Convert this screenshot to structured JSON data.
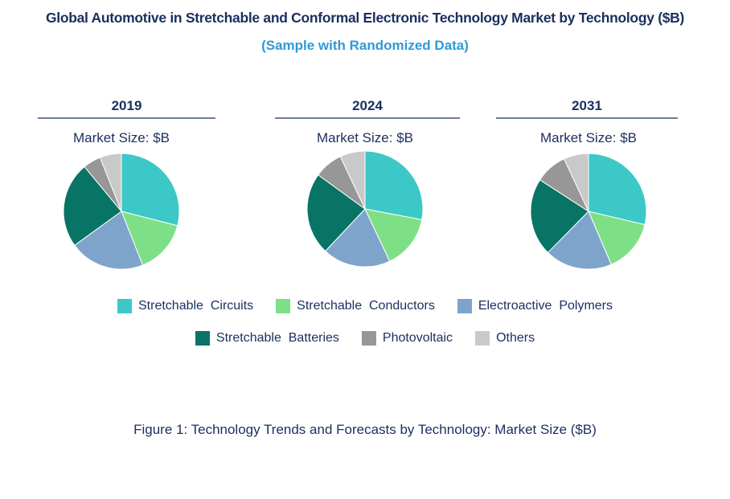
{
  "title": "Global Automotive in Stretchable and Conformal Electronic Technology Market by Technology ($B)",
  "subtitle": "(Sample with Randomized Data)",
  "caption": "Figure 1: Technology Trends and Forecasts by Technology: Market Size ($B)",
  "colors": {
    "text_dark": "#1a2f5f",
    "subtitle": "#2d9ad6"
  },
  "chart_data": {
    "type": "pie",
    "categories": [
      "Stretchable  Circuits",
      "Stretchable  Conductors",
      "Electroactive  Polymers",
      "Stretchable  Batteries",
      "Photovoltaic",
      "Others"
    ],
    "category_colors": [
      "#3cc8c6",
      "#7ee086",
      "#7fa4cc",
      "#087466",
      "#979797",
      "#c9c9c9"
    ],
    "charts": [
      {
        "year": "2019",
        "label": "Market Size: $B",
        "values": [
          29,
          15,
          21,
          24,
          5,
          6
        ]
      },
      {
        "year": "2024",
        "label": "Market Size: $B",
        "values": [
          28,
          15,
          19,
          23,
          8,
          7
        ]
      },
      {
        "year": "2031",
        "label": "Market Size: $B",
        "values": [
          29,
          15,
          19,
          22,
          9,
          7
        ]
      }
    ]
  }
}
